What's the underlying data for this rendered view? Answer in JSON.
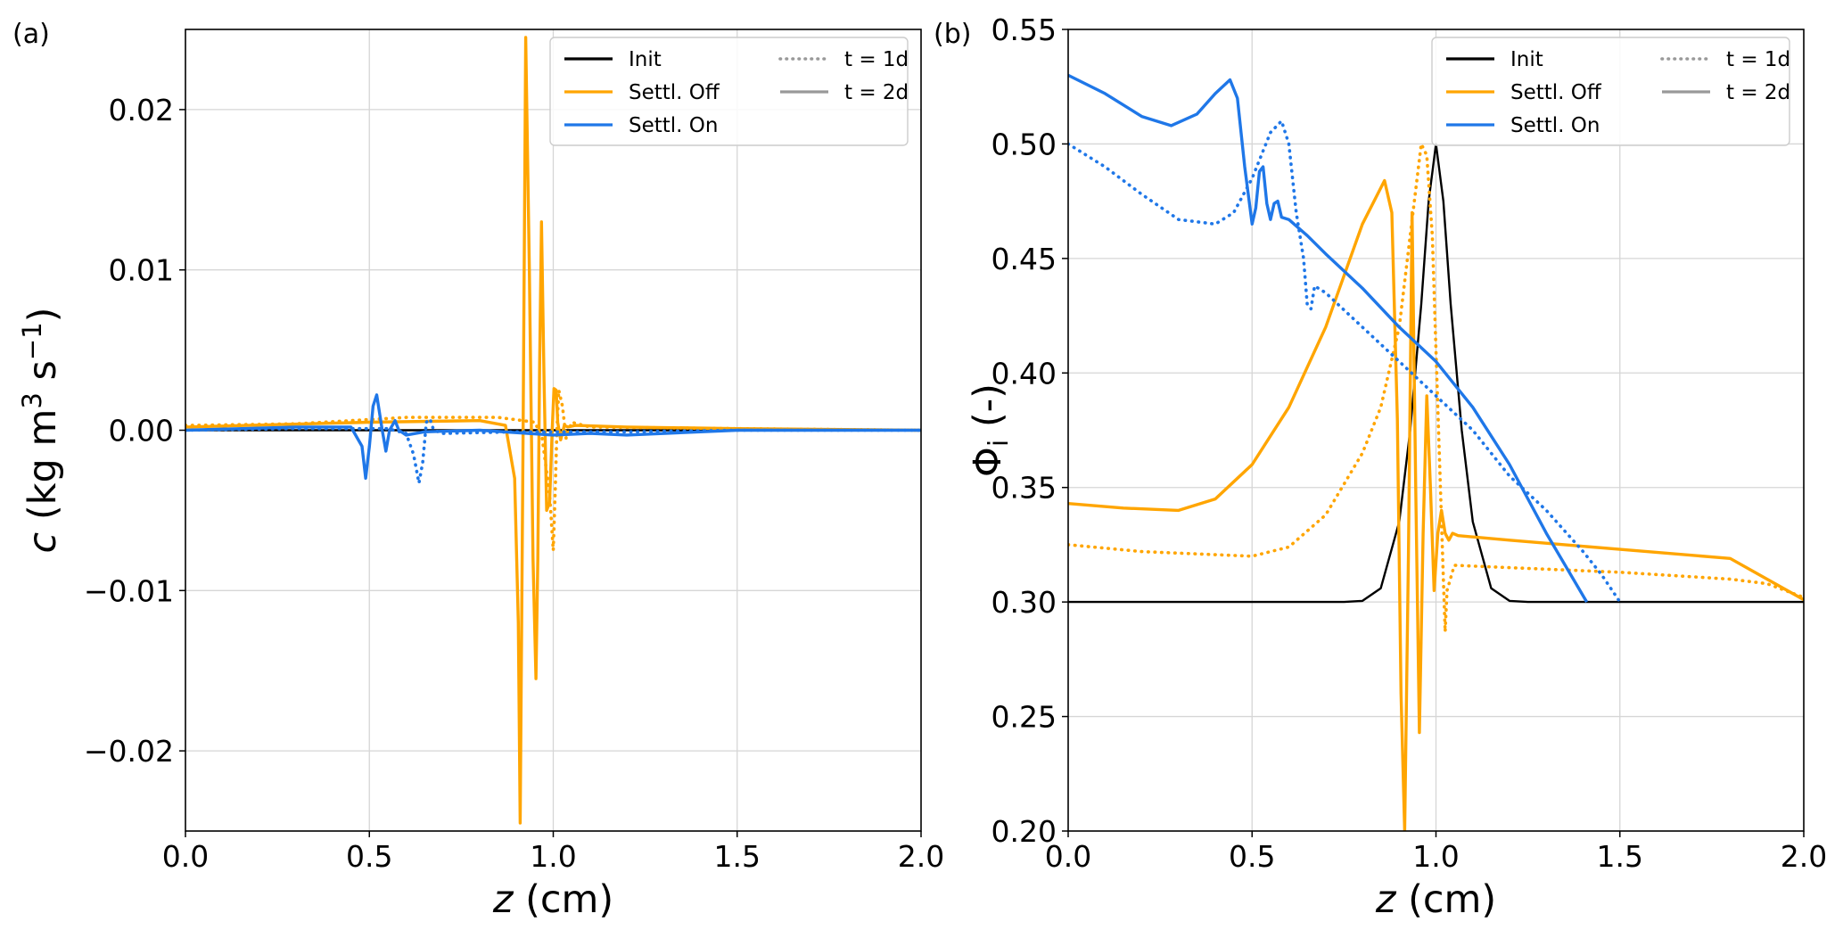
{
  "chart_data": [
    {
      "panel_label": "(a)",
      "type": "line",
      "xlabel_var": "z",
      "xlabel_unit": " (cm)",
      "ylabel_var": "c",
      "ylabel_text": " (kg m",
      "ylabel_sup1": "3",
      "ylabel_mid": " s",
      "ylabel_sup2": "−1",
      "ylabel_end": ")",
      "xlim": [
        0,
        2.0
      ],
      "ylim": [
        -0.025,
        0.025
      ],
      "xticks": [
        0.0,
        0.5,
        1.0,
        1.5,
        2.0
      ],
      "xtick_labels": [
        "0.0",
        "0.5",
        "1.0",
        "1.5",
        "2.0"
      ],
      "yticks": [
        -0.02,
        -0.01,
        0.0,
        0.01,
        0.02
      ],
      "ytick_labels": [
        "−0.02",
        "−0.01",
        "0.00",
        "0.01",
        "0.02"
      ],
      "grid": true,
      "legend_position": "top-right",
      "legend": [
        {
          "label": "Init",
          "color": "#000000",
          "dash": "solid"
        },
        {
          "label": "Settl. Off",
          "color": "#ffa500",
          "dash": "solid"
        },
        {
          "label": "Settl. On",
          "color": "#1f77e8",
          "dash": "solid"
        },
        {
          "label": "t = 1d",
          "color": "#999999",
          "dash": "dotted"
        },
        {
          "label": "t = 2d",
          "color": "#999999",
          "dash": "solid"
        }
      ],
      "series": [
        {
          "name": "Init",
          "color": "#000000",
          "dash": "solid",
          "x": [
            0,
            2.0
          ],
          "y": [
            0,
            0
          ]
        },
        {
          "name": "Settl. Off",
          "time": "t = 1d",
          "color": "#ffa500",
          "dash": "dotted",
          "x": [
            0,
            0.3,
            0.6,
            0.85,
            0.95,
            0.97,
            0.99,
            1.0,
            1.005,
            1.01,
            1.015,
            1.025,
            1.035,
            1.05,
            1.1,
            1.5,
            2.0
          ],
          "y": [
            0.0003,
            0.0004,
            0.0008,
            0.0008,
            0.0005,
            -0.0005,
            -0.004,
            -0.0075,
            -0.004,
            0.0,
            0.0025,
            0.0015,
            -0.0005,
            0.0005,
            0.0002,
            0.0001,
            0.0
          ]
        },
        {
          "name": "Settl. Off",
          "time": "t = 2d",
          "color": "#ffa500",
          "dash": "solid",
          "x": [
            0,
            0.5,
            0.8,
            0.87,
            0.895,
            0.905,
            0.91,
            0.918,
            0.925,
            0.935,
            0.945,
            0.953,
            0.958,
            0.963,
            0.968,
            0.975,
            0.982,
            0.99,
            0.997,
            1.002,
            1.008,
            1.012,
            1.02,
            1.03,
            1.04,
            1.06,
            1.2,
            1.5,
            2.0
          ],
          "y": [
            0.0002,
            0.0005,
            0.0006,
            0.0003,
            -0.003,
            -0.012,
            -0.0245,
            0.0,
            0.0245,
            0.01,
            -0.008,
            -0.0155,
            -0.008,
            0.004,
            0.013,
            0.003,
            -0.005,
            -0.0045,
            0.0,
            0.0026,
            0.0025,
            0.0005,
            -0.0006,
            0.0003,
            0.0002,
            0.0003,
            0.0002,
            0.0001,
            0.0
          ]
        },
        {
          "name": "Settl. On",
          "time": "t = 1d",
          "color": "#1f77e8",
          "dash": "dotted",
          "x": [
            0,
            0.3,
            0.55,
            0.6,
            0.62,
            0.635,
            0.645,
            0.655,
            0.665,
            0.675,
            0.7,
            0.9,
            1.2,
            1.5,
            2.0
          ],
          "y": [
            0.0,
            0.0001,
            0.0001,
            -0.0002,
            -0.0015,
            -0.0033,
            -0.002,
            0.0005,
            0.0007,
            0.0,
            -0.0002,
            -0.0001,
            -0.0001,
            0.0,
            0.0
          ]
        },
        {
          "name": "Settl. On",
          "time": "t = 2d",
          "color": "#1f77e8",
          "dash": "solid",
          "x": [
            0,
            0.3,
            0.45,
            0.48,
            0.49,
            0.5,
            0.51,
            0.52,
            0.535,
            0.545,
            0.555,
            0.57,
            0.58,
            0.6,
            0.65,
            0.8,
            1.0,
            1.1,
            1.2,
            1.5,
            2.0
          ],
          "y": [
            0.0,
            0.0002,
            0.0002,
            -0.001,
            -0.003,
            -0.001,
            0.0015,
            0.0022,
            0.0,
            -0.0013,
            0.0,
            0.0006,
            0.0,
            -0.0003,
            -0.0001,
            0.0,
            -0.0003,
            -0.0002,
            -0.0003,
            0.0,
            0.0
          ]
        }
      ]
    },
    {
      "panel_label": "(b)",
      "type": "line",
      "xlabel_var": "z",
      "xlabel_unit": " (cm)",
      "ylabel_var": "Φ",
      "ylabel_sub": "i",
      "ylabel_end": " (-)",
      "xlim": [
        0,
        2.0
      ],
      "ylim": [
        0.2,
        0.55
      ],
      "xticks": [
        0.0,
        0.5,
        1.0,
        1.5,
        2.0
      ],
      "xtick_labels": [
        "0.0",
        "0.5",
        "1.0",
        "1.5",
        "2.0"
      ],
      "yticks": [
        0.2,
        0.25,
        0.3,
        0.35,
        0.4,
        0.45,
        0.5,
        0.55
      ],
      "ytick_labels": [
        "0.20",
        "0.25",
        "0.30",
        "0.35",
        "0.40",
        "0.45",
        "0.50",
        "0.55"
      ],
      "grid": true,
      "legend_position": "top-right",
      "legend": [
        {
          "label": "Init",
          "color": "#000000",
          "dash": "solid"
        },
        {
          "label": "Settl. Off",
          "color": "#ffa500",
          "dash": "solid"
        },
        {
          "label": "Settl. On",
          "color": "#1f77e8",
          "dash": "solid"
        },
        {
          "label": "t = 1d",
          "color": "#999999",
          "dash": "dotted"
        },
        {
          "label": "t = 2d",
          "color": "#999999",
          "dash": "solid"
        }
      ],
      "series": [
        {
          "name": "Init",
          "color": "#000000",
          "dash": "solid",
          "x": [
            0,
            0.75,
            0.8,
            0.85,
            0.9,
            0.93,
            0.96,
            0.98,
            1.0,
            1.02,
            1.04,
            1.07,
            1.1,
            1.15,
            1.2,
            1.25,
            2.0
          ],
          "y": [
            0.3,
            0.3,
            0.3005,
            0.306,
            0.335,
            0.375,
            0.43,
            0.475,
            0.5,
            0.475,
            0.43,
            0.375,
            0.335,
            0.306,
            0.3005,
            0.3,
            0.3
          ]
        },
        {
          "name": "Settl. Off",
          "time": "t = 1d",
          "color": "#ffa500",
          "dash": "dotted",
          "x": [
            0,
            0.2,
            0.5,
            0.6,
            0.7,
            0.8,
            0.85,
            0.9,
            0.93,
            0.96,
            0.975,
            0.99,
            1.0,
            1.02,
            1.025,
            1.03,
            1.05,
            1.2,
            1.5,
            1.8,
            1.9,
            2.0
          ],
          "y": [
            0.325,
            0.322,
            0.32,
            0.324,
            0.338,
            0.365,
            0.385,
            0.42,
            0.46,
            0.5,
            0.495,
            0.46,
            0.41,
            0.31,
            0.287,
            0.305,
            0.316,
            0.315,
            0.313,
            0.31,
            0.308,
            0.302
          ]
        },
        {
          "name": "Settl. Off",
          "time": "t = 2d",
          "color": "#ffa500",
          "dash": "solid",
          "x": [
            0,
            0.15,
            0.3,
            0.4,
            0.5,
            0.6,
            0.7,
            0.8,
            0.86,
            0.88,
            0.895,
            0.905,
            0.915,
            0.925,
            0.935,
            0.945,
            0.955,
            0.965,
            0.975,
            0.985,
            0.995,
            1.005,
            1.015,
            1.025,
            1.035,
            1.045,
            1.06,
            1.2,
            1.5,
            1.8,
            1.9,
            2.0
          ],
          "y": [
            0.343,
            0.341,
            0.34,
            0.345,
            0.36,
            0.385,
            0.42,
            0.465,
            0.484,
            0.47,
            0.38,
            0.26,
            0.2,
            0.32,
            0.47,
            0.35,
            0.243,
            0.33,
            0.39,
            0.35,
            0.305,
            0.33,
            0.34,
            0.33,
            0.327,
            0.33,
            0.329,
            0.327,
            0.323,
            0.319,
            0.31,
            0.301
          ]
        },
        {
          "name": "Settl. On",
          "time": "t = 1d",
          "color": "#1f77e8",
          "dash": "dotted",
          "x": [
            0,
            0.1,
            0.2,
            0.3,
            0.4,
            0.45,
            0.5,
            0.55,
            0.58,
            0.6,
            0.62,
            0.63,
            0.64,
            0.65,
            0.66,
            0.67,
            0.7,
            0.8,
            0.9,
            1.0,
            1.1,
            1.2,
            1.3,
            1.4,
            1.45,
            1.5
          ],
          "y": [
            0.5,
            0.49,
            0.478,
            0.467,
            0.465,
            0.47,
            0.485,
            0.505,
            0.51,
            0.5,
            0.47,
            0.46,
            0.45,
            0.43,
            0.428,
            0.438,
            0.435,
            0.42,
            0.405,
            0.39,
            0.375,
            0.355,
            0.34,
            0.322,
            0.312,
            0.3
          ]
        },
        {
          "name": "Settl. On",
          "time": "t = 2d",
          "color": "#1f77e8",
          "dash": "solid",
          "x": [
            0,
            0.1,
            0.2,
            0.28,
            0.35,
            0.4,
            0.44,
            0.46,
            0.48,
            0.5,
            0.51,
            0.52,
            0.53,
            0.54,
            0.55,
            0.56,
            0.57,
            0.58,
            0.6,
            0.65,
            0.7,
            0.8,
            0.9,
            1.0,
            1.1,
            1.2,
            1.3,
            1.41
          ],
          "y": [
            0.53,
            0.522,
            0.512,
            0.508,
            0.513,
            0.522,
            0.528,
            0.52,
            0.49,
            0.465,
            0.472,
            0.488,
            0.49,
            0.474,
            0.467,
            0.474,
            0.475,
            0.468,
            0.467,
            0.46,
            0.452,
            0.437,
            0.42,
            0.405,
            0.385,
            0.36,
            0.33,
            0.3
          ]
        }
      ]
    }
  ]
}
